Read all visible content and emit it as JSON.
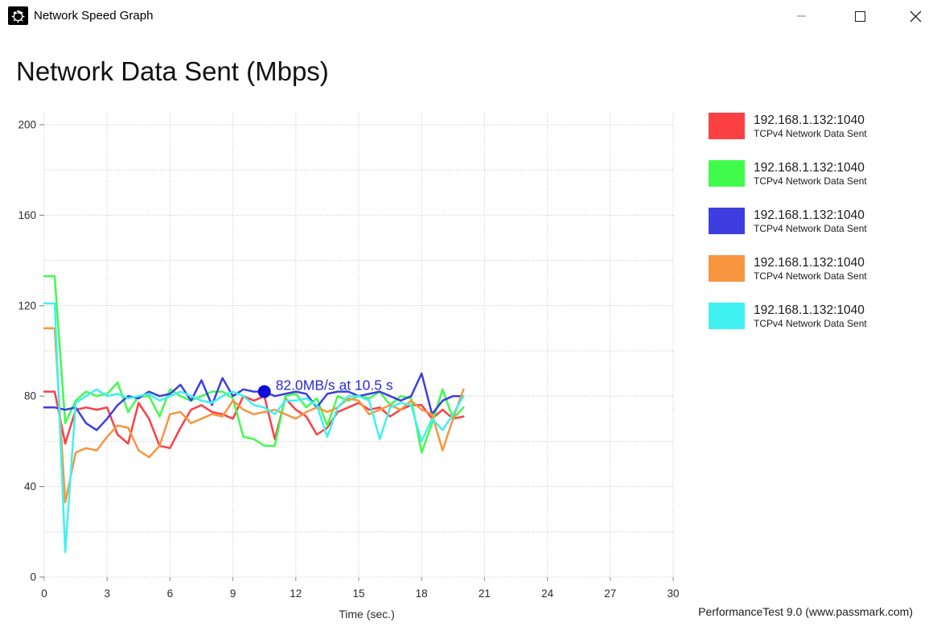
{
  "window": {
    "title": "Network Speed Graph",
    "icons": [
      "app-gauge-icon",
      "minimize-icon",
      "maximize-icon",
      "close-icon"
    ]
  },
  "header": {
    "title": "Network Data Sent (Mbps)"
  },
  "footer": {
    "text": "PerformanceTest 9.0 (www.passmark.com)"
  },
  "chart_data": {
    "type": "line",
    "title": "Network Data Sent (Mbps)",
    "xlabel": "Time (sec.)",
    "ylabel": "",
    "xlim": [
      0,
      30
    ],
    "ylim": [
      0,
      200
    ],
    "x_ticks": [
      0,
      3,
      6,
      9,
      12,
      15,
      18,
      21,
      24,
      27,
      30
    ],
    "y_ticks_labeled": [
      0,
      40,
      80,
      120,
      160,
      200
    ],
    "y_grid_step": 20,
    "grid": "dotted",
    "grid_color": "#bfbfbf",
    "tick_color": "#8f8f8f",
    "label_color": "#2b2b2b",
    "x_step": 0.5,
    "annotation": {
      "text": "82.0MB/s at 10.5 s",
      "x": 10.5,
      "y": 82,
      "text_color": "#2c2ccd",
      "dot_color": "#0d0dd6"
    },
    "series": [
      {
        "name": "192.168.1.132:1040",
        "subtitle": "TCPv4 Network Data Sent",
        "color": "#fb4043",
        "values": [
          82,
          82,
          59,
          74,
          75,
          74,
          75,
          63,
          59,
          77,
          70,
          58,
          57,
          66,
          74,
          76,
          73,
          72,
          70,
          80,
          78,
          80,
          61,
          79,
          74,
          71,
          63,
          66,
          73,
          75,
          77,
          74,
          75,
          71,
          74,
          76,
          76,
          70,
          74,
          70,
          71
        ]
      },
      {
        "name": "192.168.1.132:1040",
        "subtitle": "TCPv4 Network Data Sent",
        "color": "#41fb4c",
        "values": [
          133,
          133,
          68,
          78,
          82,
          80,
          81,
          86,
          73,
          80,
          80,
          71,
          83,
          80,
          78,
          80,
          82,
          82,
          79,
          62,
          61,
          58,
          58,
          80,
          81,
          75,
          79,
          67,
          80,
          78,
          80,
          79,
          82,
          76,
          80,
          79,
          55,
          68,
          83,
          70,
          75
        ]
      },
      {
        "name": "192.168.1.132:1040",
        "subtitle": "TCPv4 Network Data Sent",
        "color": "#3e3ee0",
        "values": [
          75,
          75,
          74,
          75,
          68,
          65,
          70,
          76,
          80,
          79,
          82,
          80,
          81,
          85,
          78,
          87,
          76,
          88,
          80,
          83,
          82,
          82,
          80,
          81,
          82,
          81,
          75,
          81,
          82,
          82,
          80,
          81,
          82,
          80,
          78,
          80,
          90,
          72,
          78,
          80,
          80
        ]
      },
      {
        "name": "192.168.1.132:1040",
        "subtitle": "TCPv4 Network Data Sent",
        "color": "#f8953f",
        "values": [
          110,
          110,
          33,
          55,
          57,
          56,
          62,
          67,
          66,
          56,
          53,
          58,
          72,
          73,
          68,
          70,
          72,
          71,
          78,
          74,
          72,
          73,
          74,
          72,
          70,
          73,
          75,
          73,
          75,
          79,
          78,
          72,
          74,
          76,
          74,
          78,
          74,
          72,
          56,
          70,
          83
        ]
      },
      {
        "name": "192.168.1.132:1040",
        "subtitle": "TCPv4 Network Data Sent",
        "color": "#40f1f1",
        "values": [
          121,
          121,
          11,
          77,
          80,
          83,
          80,
          81,
          79,
          80,
          81,
          78,
          80,
          82,
          80,
          78,
          77,
          80,
          82,
          80,
          76,
          75,
          72,
          78,
          78,
          79,
          76,
          62,
          75,
          80,
          80,
          78,
          61,
          75,
          77,
          76,
          60,
          70,
          65,
          72,
          80
        ]
      }
    ]
  }
}
